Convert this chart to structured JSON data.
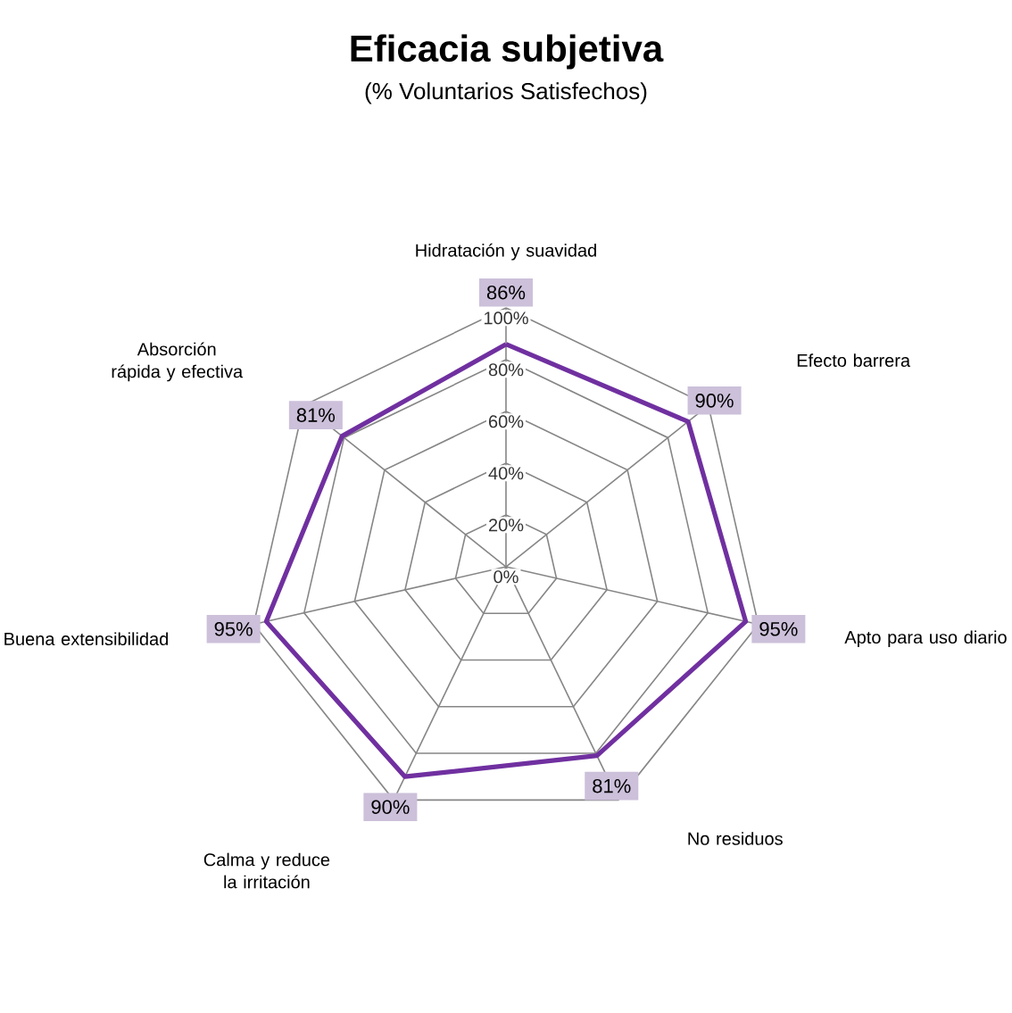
{
  "chart_data": {
    "type": "radar",
    "title": "Eficacia subjetiva",
    "subtitle": "(% Voluntarios Satisfechos)",
    "categories": [
      "Hidratación y suavidad",
      "Efecto barrera",
      "Apto para uso diario",
      "No residuos",
      "Calma y reduce la irritación",
      "Buena extensibilidad",
      "Absorción rápida y efectiva"
    ],
    "series": [
      {
        "color": "#7030a0",
        "values": [
          86,
          90,
          95,
          81,
          90,
          95,
          81
        ],
        "value_labels": [
          "86%",
          "90%",
          "95%",
          "81%",
          "90%",
          "95%",
          "81%"
        ]
      }
    ],
    "ylim": [
      0,
      100
    ],
    "yticks": [
      {
        "value": 0,
        "label": "0%"
      },
      {
        "value": 20,
        "label": "20%"
      },
      {
        "value": 40,
        "label": "40%"
      },
      {
        "value": 60,
        "label": "60%"
      },
      {
        "value": 80,
        "label": "80%"
      },
      {
        "value": 100,
        "label": "100%"
      }
    ],
    "grid": true
  }
}
